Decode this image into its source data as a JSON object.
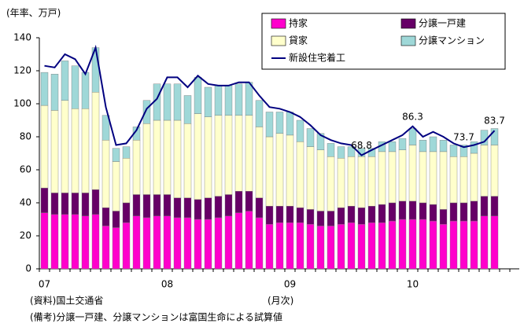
{
  "chart_data": {
    "type": "bar",
    "stacked": true,
    "y_label": "(年率、万戸)",
    "categories": [
      "07",
      null,
      null,
      null,
      null,
      null,
      null,
      null,
      null,
      null,
      null,
      null,
      "08",
      null,
      null,
      null,
      null,
      null,
      null,
      null,
      null,
      null,
      null,
      null,
      "09",
      null,
      null,
      null,
      null,
      null,
      null,
      null,
      null,
      null,
      null,
      null,
      "10",
      null,
      null,
      null,
      null,
      null,
      null,
      null,
      null
    ],
    "series": [
      {
        "name": "持家",
        "color": "#ff00cc",
        "values": [
          34,
          33,
          33,
          33,
          32,
          33,
          26,
          25,
          28,
          32,
          31,
          32,
          32,
          31,
          31,
          30,
          30,
          31,
          32,
          34,
          35,
          31,
          27,
          28,
          28,
          28,
          27,
          26,
          26,
          27,
          28,
          27,
          28,
          28,
          29,
          30,
          30,
          30,
          29,
          27,
          29,
          29,
          29,
          32,
          32
        ]
      },
      {
        "name": "分譲一戸建",
        "color": "#660066",
        "values": [
          15,
          13,
          13,
          13,
          14,
          15,
          11,
          10,
          12,
          13,
          14,
          13,
          13,
          12,
          12,
          12,
          13,
          13,
          13,
          13,
          12,
          12,
          11,
          10,
          10,
          9,
          9,
          9,
          9,
          10,
          10,
          10,
          10,
          11,
          11,
          11,
          11,
          10,
          10,
          9,
          11,
          11,
          12,
          12,
          12
        ]
      },
      {
        "name": "貸家",
        "color": "#ffffcc",
        "values": [
          50,
          50,
          56,
          51,
          51,
          59,
          41,
          30,
          27,
          33,
          43,
          45,
          45,
          47,
          45,
          52,
          49,
          49,
          48,
          46,
          46,
          43,
          42,
          44,
          43,
          40,
          38,
          37,
          33,
          30,
          30,
          31,
          30,
          32,
          31,
          31,
          34,
          31,
          32,
          35,
          28,
          28,
          29,
          31,
          31
        ]
      },
      {
        "name": "分譲マンション",
        "color": "#9fd8d8",
        "values": [
          20,
          22,
          24,
          26,
          22,
          27,
          15,
          8,
          7,
          8,
          14,
          22,
          22,
          22,
          17,
          22,
          18,
          18,
          18,
          19,
          20,
          16,
          15,
          13,
          14,
          13,
          11,
          10,
          8,
          7,
          6,
          5,
          5,
          6,
          6,
          7,
          10,
          7,
          9,
          7,
          7,
          7,
          7,
          9,
          10
        ]
      },
      {
        "name": "新設住宅着工",
        "type": "line",
        "color": "#000080",
        "values": [
          123,
          122,
          130,
          127,
          118,
          134,
          98,
          75,
          76,
          84,
          97,
          103,
          116,
          116,
          110,
          117,
          112,
          111,
          111,
          113,
          113,
          105,
          98,
          97,
          95,
          92,
          87,
          81,
          78,
          76,
          75,
          68.8,
          72,
          75,
          78,
          81,
          86.3,
          80,
          83,
          80,
          76,
          73.7,
          75,
          77,
          83.7
        ],
        "value_labels": [
          null,
          null,
          null,
          null,
          null,
          null,
          null,
          null,
          null,
          null,
          null,
          null,
          null,
          null,
          null,
          null,
          null,
          null,
          null,
          null,
          null,
          null,
          null,
          null,
          null,
          null,
          null,
          null,
          null,
          null,
          null,
          "68.8",
          null,
          null,
          null,
          null,
          "86.3",
          null,
          null,
          null,
          null,
          "73.7",
          null,
          null,
          "83.7"
        ]
      }
    ],
    "ylim": [
      0,
      140
    ],
    "yticks": [
      0,
      20,
      40,
      60,
      80,
      100,
      120,
      140
    ],
    "grid": false,
    "legend": "top-right",
    "notes": [
      "(資料)国土交通省",
      "(月次)",
      "(備考)分譲一戸建、分譲マンションは富国生命による試算値"
    ]
  }
}
